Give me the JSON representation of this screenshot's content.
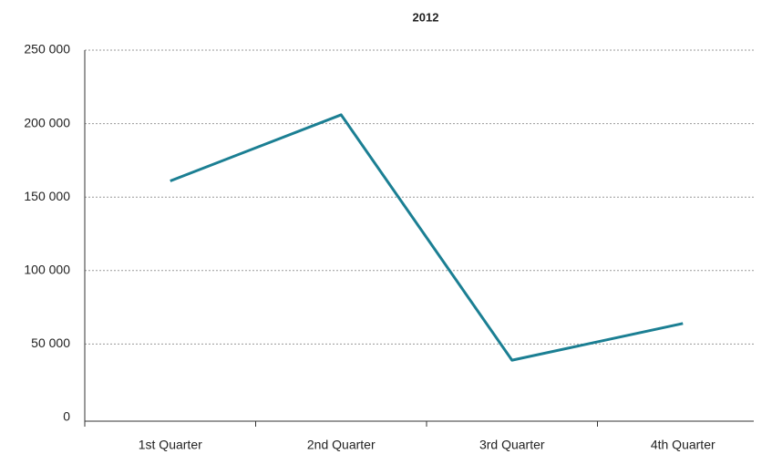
{
  "chart_data": {
    "type": "line",
    "title": "2012",
    "categories": [
      "1st Quarter",
      "2nd Quarter",
      "3rd Quarter",
      "4th Quarter"
    ],
    "values": [
      161000,
      206000,
      39000,
      64000
    ],
    "color": "#1b7f93",
    "ylim": [
      0,
      250000
    ],
    "yticks": [
      0,
      {
        "value": 50000,
        "label": "50 000"
      },
      {
        "value": 100000,
        "label": "100 000"
      },
      {
        "value": 150000,
        "label": "150 000"
      },
      {
        "value": 200000,
        "label": "200 000"
      },
      {
        "value": 250000,
        "label": "250 000"
      }
    ],
    "grid": true
  }
}
